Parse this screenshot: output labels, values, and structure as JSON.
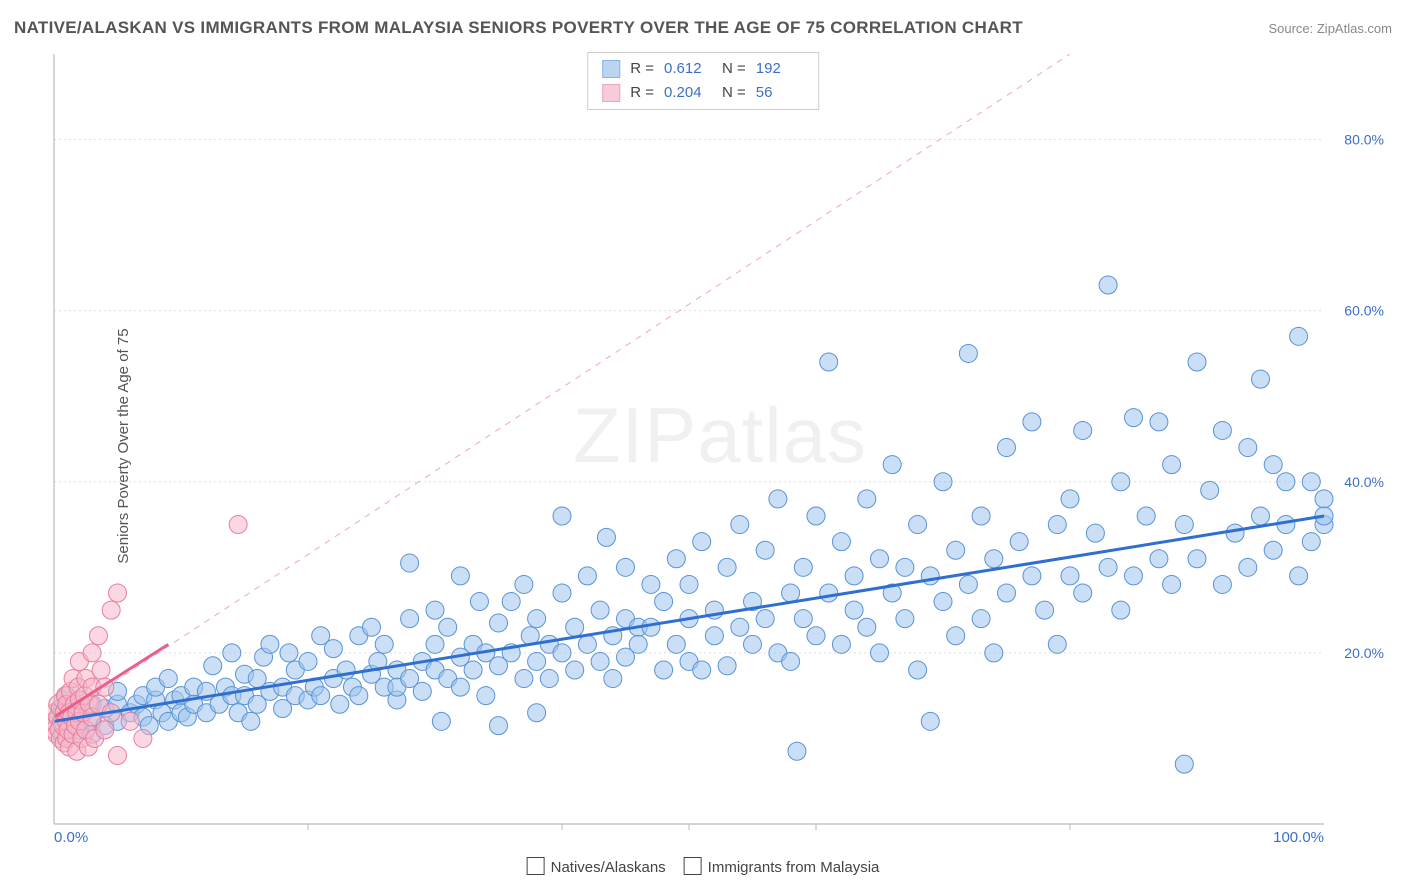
{
  "title": "NATIVE/ALASKAN VS IMMIGRANTS FROM MALAYSIA SENIORS POVERTY OVER THE AGE OF 75 CORRELATION CHART",
  "source_prefix": "Source: ",
  "source_name": "ZipAtlas.com",
  "y_axis_label": "Seniors Poverty Over the Age of 75",
  "watermark": "ZIPatlas",
  "legend_top": {
    "rows": [
      {
        "swatch": "blue",
        "r_label": "R =",
        "r_value": "0.612",
        "n_label": "N =",
        "n_value": "192"
      },
      {
        "swatch": "pink",
        "r_label": "R =",
        "r_value": "0.204",
        "n_label": "N =",
        "n_value": "56"
      }
    ]
  },
  "legend_bottom": {
    "items": [
      {
        "swatch": "blue",
        "label": "Natives/Alaskans"
      },
      {
        "swatch": "pink",
        "label": "Immigrants from Malaysia"
      }
    ]
  },
  "chart": {
    "type": "scatter",
    "background_color": "#ffffff",
    "grid_color": "#dddddd",
    "axis_color": "#bbbbbb",
    "xlim": [
      0,
      100
    ],
    "ylim": [
      0,
      90
    ],
    "y_ticks": [
      20,
      40,
      60,
      80
    ],
    "y_tick_labels": [
      "20.0%",
      "40.0%",
      "60.0%",
      "80.0%"
    ],
    "x_tick_left": "0.0%",
    "x_tick_right": "100.0%",
    "x_minor_ticks": [
      20,
      40,
      50,
      60,
      80
    ],
    "marker_radius": 9,
    "series": {
      "blue": {
        "fill": "#9fc4ec",
        "stroke": "#5a93d6",
        "trend_color": "#2f6fd0",
        "trend": {
          "x1": 0,
          "y1": 12,
          "x2": 100,
          "y2": 36
        },
        "points": [
          [
            0,
            12
          ],
          [
            1,
            15
          ],
          [
            1,
            13
          ],
          [
            2,
            12.5
          ],
          [
            2,
            11
          ],
          [
            3,
            14
          ],
          [
            3,
            12
          ],
          [
            3,
            10.5
          ],
          [
            4,
            13.5
          ],
          [
            4,
            11.5
          ],
          [
            5,
            14
          ],
          [
            5,
            12
          ],
          [
            5,
            15.5
          ],
          [
            6,
            13
          ],
          [
            6.5,
            14
          ],
          [
            7,
            12.5
          ],
          [
            7,
            15
          ],
          [
            7.5,
            11.5
          ],
          [
            8,
            14.5
          ],
          [
            8,
            16
          ],
          [
            8.5,
            13
          ],
          [
            9,
            12
          ],
          [
            9,
            17
          ],
          [
            9.5,
            14.5
          ],
          [
            10,
            15
          ],
          [
            10,
            13
          ],
          [
            10.5,
            12.5
          ],
          [
            11,
            16
          ],
          [
            11,
            14
          ],
          [
            12,
            15.5
          ],
          [
            12,
            13
          ],
          [
            12.5,
            18.5
          ],
          [
            13,
            14
          ],
          [
            13.5,
            16
          ],
          [
            14,
            15
          ],
          [
            14,
            20
          ],
          [
            14.5,
            13
          ],
          [
            15,
            17.5
          ],
          [
            15,
            15
          ],
          [
            15.5,
            12
          ],
          [
            16,
            17
          ],
          [
            16,
            14
          ],
          [
            16.5,
            19.5
          ],
          [
            17,
            15.5
          ],
          [
            17,
            21
          ],
          [
            18,
            16
          ],
          [
            18,
            13.5
          ],
          [
            18.5,
            20
          ],
          [
            19,
            15
          ],
          [
            19,
            18
          ],
          [
            20,
            14.5
          ],
          [
            20,
            19
          ],
          [
            20.5,
            16
          ],
          [
            21,
            22
          ],
          [
            21,
            15
          ],
          [
            22,
            17
          ],
          [
            22,
            20.5
          ],
          [
            22.5,
            14
          ],
          [
            23,
            18
          ],
          [
            23.5,
            16
          ],
          [
            24,
            22
          ],
          [
            24,
            15
          ],
          [
            25,
            23
          ],
          [
            25,
            17.5
          ],
          [
            25.5,
            19
          ],
          [
            26,
            16
          ],
          [
            26,
            21
          ],
          [
            27,
            18
          ],
          [
            27,
            14.5
          ],
          [
            27,
            16
          ],
          [
            28,
            24
          ],
          [
            28,
            17
          ],
          [
            28,
            30.5
          ],
          [
            29,
            19
          ],
          [
            29,
            15.5
          ],
          [
            30,
            25
          ],
          [
            30,
            18
          ],
          [
            30,
            21
          ],
          [
            30.5,
            12
          ],
          [
            31,
            17
          ],
          [
            31,
            23
          ],
          [
            32,
            19.5
          ],
          [
            32,
            29
          ],
          [
            32,
            16
          ],
          [
            33,
            21
          ],
          [
            33,
            18
          ],
          [
            33.5,
            26
          ],
          [
            34,
            15
          ],
          [
            34,
            20
          ],
          [
            35,
            23.5
          ],
          [
            35,
            18.5
          ],
          [
            35,
            11.5
          ],
          [
            36,
            26
          ],
          [
            36,
            20
          ],
          [
            37,
            17
          ],
          [
            37,
            28
          ],
          [
            37.5,
            22
          ],
          [
            38,
            19
          ],
          [
            38,
            13
          ],
          [
            38,
            24
          ],
          [
            39,
            21
          ],
          [
            39,
            17
          ],
          [
            40,
            27
          ],
          [
            40,
            20
          ],
          [
            40,
            36
          ],
          [
            41,
            23
          ],
          [
            41,
            18
          ],
          [
            42,
            29
          ],
          [
            42,
            21
          ],
          [
            43,
            25
          ],
          [
            43,
            19
          ],
          [
            43.5,
            33.5
          ],
          [
            44,
            22
          ],
          [
            44,
            17
          ],
          [
            45,
            24
          ],
          [
            45,
            30
          ],
          [
            45,
            19.5
          ],
          [
            46,
            23
          ],
          [
            46,
            21
          ],
          [
            47,
            28
          ],
          [
            47,
            23
          ],
          [
            48,
            18
          ],
          [
            48,
            26
          ],
          [
            49,
            31
          ],
          [
            49,
            21
          ],
          [
            50,
            24
          ],
          [
            50,
            28
          ],
          [
            50,
            19
          ],
          [
            51,
            18
          ],
          [
            51,
            33
          ],
          [
            52,
            25
          ],
          [
            52,
            22
          ],
          [
            53,
            30
          ],
          [
            53,
            18.5
          ],
          [
            54,
            23
          ],
          [
            54,
            35
          ],
          [
            55,
            26
          ],
          [
            55,
            21
          ],
          [
            56,
            32
          ],
          [
            56,
            24
          ],
          [
            57,
            20
          ],
          [
            57,
            38
          ],
          [
            58,
            27
          ],
          [
            58,
            19
          ],
          [
            58.5,
            8.5
          ],
          [
            59,
            30
          ],
          [
            59,
            24
          ],
          [
            60,
            36
          ],
          [
            60,
            22
          ],
          [
            61,
            54
          ],
          [
            61,
            27
          ],
          [
            62,
            33
          ],
          [
            62,
            21
          ],
          [
            63,
            29
          ],
          [
            63,
            25
          ],
          [
            64,
            38
          ],
          [
            64,
            23
          ],
          [
            65,
            31
          ],
          [
            65,
            20
          ],
          [
            66,
            27
          ],
          [
            66,
            42
          ],
          [
            67,
            30
          ],
          [
            67,
            24
          ],
          [
            68,
            18
          ],
          [
            68,
            35
          ],
          [
            69,
            29
          ],
          [
            69,
            12
          ],
          [
            70,
            40
          ],
          [
            70,
            26
          ],
          [
            71,
            32
          ],
          [
            71,
            22
          ],
          [
            72,
            55
          ],
          [
            72,
            28
          ],
          [
            73,
            36
          ],
          [
            73,
            24
          ],
          [
            74,
            31
          ],
          [
            74,
            20
          ],
          [
            75,
            44
          ],
          [
            75,
            27
          ],
          [
            76,
            33
          ],
          [
            77,
            29
          ],
          [
            77,
            47
          ],
          [
            78,
            25
          ],
          [
            79,
            35
          ],
          [
            79,
            21
          ],
          [
            80,
            38
          ],
          [
            80,
            29
          ],
          [
            81,
            46
          ],
          [
            81,
            27
          ],
          [
            82,
            34
          ],
          [
            83,
            63
          ],
          [
            83,
            30
          ],
          [
            84,
            40
          ],
          [
            84,
            25
          ],
          [
            85,
            29
          ],
          [
            85,
            47.5
          ],
          [
            86,
            36
          ],
          [
            87,
            31
          ],
          [
            87,
            47
          ],
          [
            88,
            28
          ],
          [
            88,
            42
          ],
          [
            89,
            35
          ],
          [
            89,
            7
          ],
          [
            90,
            31
          ],
          [
            90,
            54
          ],
          [
            91,
            39
          ],
          [
            92,
            28
          ],
          [
            92,
            46
          ],
          [
            93,
            34
          ],
          [
            94,
            44
          ],
          [
            94,
            30
          ],
          [
            95,
            52
          ],
          [
            95,
            36
          ],
          [
            96,
            32
          ],
          [
            96,
            42
          ],
          [
            97,
            40
          ],
          [
            97,
            35
          ],
          [
            98,
            29
          ],
          [
            98,
            57
          ],
          [
            99,
            40
          ],
          [
            99,
            33
          ],
          [
            100,
            38
          ],
          [
            100,
            35
          ],
          [
            100,
            36
          ]
        ]
      },
      "pink": {
        "fill": "#f6b6c8",
        "stroke": "#e77ea0",
        "trend_color": "#e85f8b",
        "trend": {
          "x1": 0,
          "y1": 12.5,
          "x2": 9,
          "y2": 21
        },
        "points": [
          [
            0,
            12
          ],
          [
            0,
            11
          ],
          [
            0,
            13
          ],
          [
            0.2,
            10.5
          ],
          [
            0.3,
            12.5
          ],
          [
            0.3,
            14
          ],
          [
            0.4,
            11
          ],
          [
            0.5,
            13.5
          ],
          [
            0.5,
            10
          ],
          [
            0.6,
            12
          ],
          [
            0.7,
            14.5
          ],
          [
            0.7,
            11.5
          ],
          [
            0.8,
            9.5
          ],
          [
            0.8,
            13
          ],
          [
            0.9,
            15
          ],
          [
            1,
            12
          ],
          [
            1,
            10
          ],
          [
            1,
            14
          ],
          [
            1.1,
            11
          ],
          [
            1.2,
            13
          ],
          [
            1.2,
            9
          ],
          [
            1.3,
            15.5
          ],
          [
            1.4,
            12.5
          ],
          [
            1.5,
            17
          ],
          [
            1.5,
            10.5
          ],
          [
            1.6,
            14
          ],
          [
            1.7,
            11.5
          ],
          [
            1.8,
            13
          ],
          [
            1.8,
            8.5
          ],
          [
            1.9,
            16
          ],
          [
            2,
            12
          ],
          [
            2,
            14.5
          ],
          [
            2,
            19
          ],
          [
            2.2,
            10
          ],
          [
            2.3,
            13
          ],
          [
            2.4,
            15
          ],
          [
            2.5,
            11
          ],
          [
            2.5,
            17
          ],
          [
            2.7,
            9
          ],
          [
            2.8,
            14
          ],
          [
            3,
            20
          ],
          [
            3,
            12.5
          ],
          [
            3,
            16
          ],
          [
            3.2,
            10
          ],
          [
            3.5,
            22
          ],
          [
            3.5,
            14
          ],
          [
            3.7,
            18
          ],
          [
            4,
            11
          ],
          [
            4,
            16
          ],
          [
            4.5,
            25
          ],
          [
            4.5,
            13
          ],
          [
            5,
            27
          ],
          [
            5,
            8
          ],
          [
            6,
            12
          ],
          [
            7,
            10
          ],
          [
            14.5,
            35
          ]
        ]
      }
    },
    "ideal_line": {
      "x1": 0,
      "y1": 12,
      "x2": 80,
      "y2": 90
    }
  }
}
